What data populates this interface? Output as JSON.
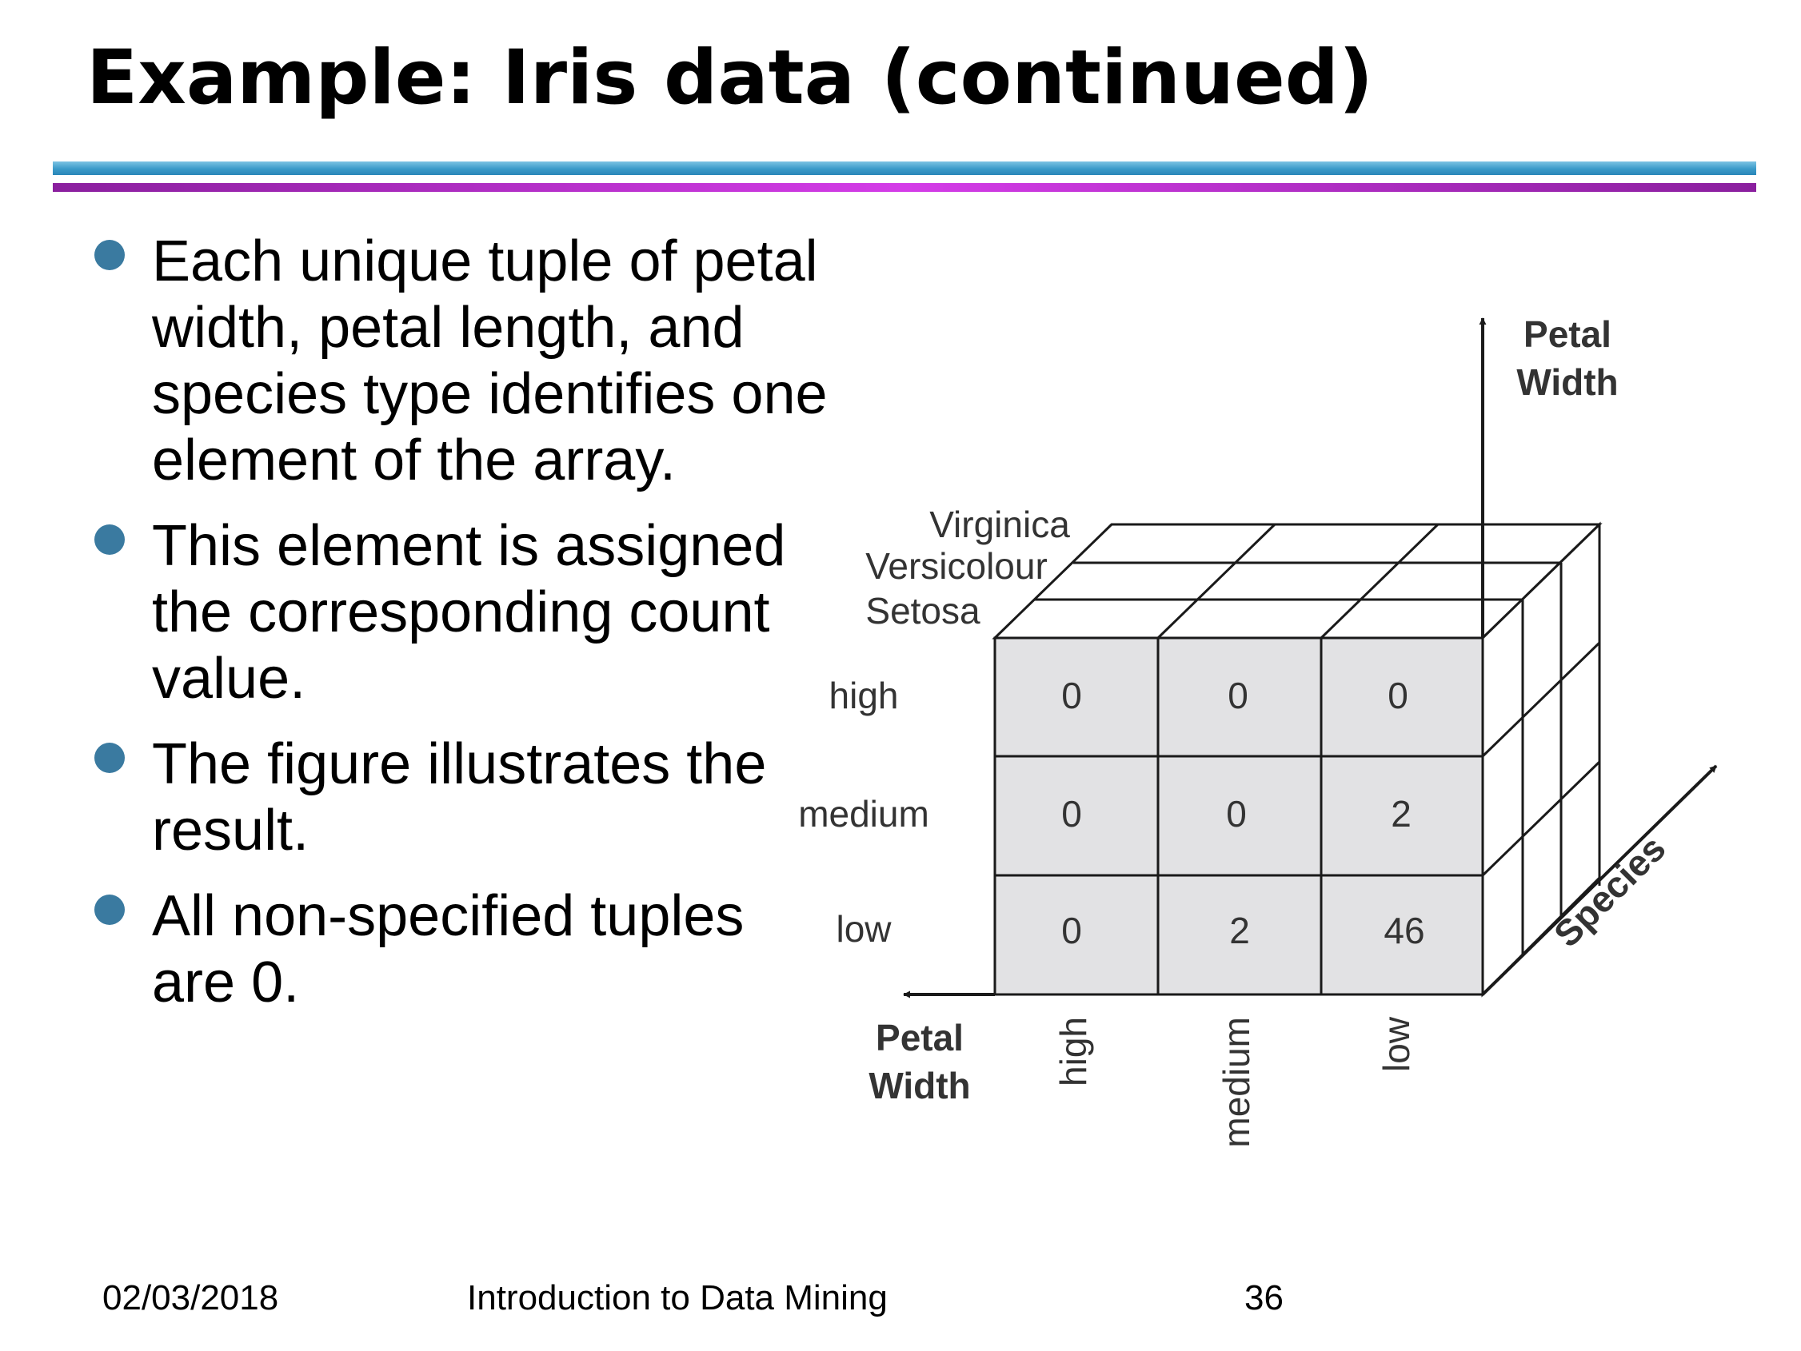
{
  "slide": {
    "title": "Example: Iris data (continued)",
    "bullets": [
      "Each unique tuple of petal width, petal length, and species type identifies one element of the array.",
      "This element is assigned the corresponding count value.",
      "The figure illustrates the result.",
      "All non-specified tuples are 0."
    ]
  },
  "diagram": {
    "species_labels": [
      "Virginica",
      "Versicolour",
      "Setosa"
    ],
    "row_labels": [
      "high",
      "medium",
      "low"
    ],
    "column_labels": [
      "high",
      "medium",
      "low"
    ],
    "vertical_axis_label_line1": "Petal",
    "vertical_axis_label_line2": "Width",
    "horizontal_axis_label_line1": "Petal",
    "horizontal_axis_label_line2": "Width",
    "depth_axis_label": "Species",
    "cells": [
      [
        "0",
        "0",
        "0"
      ],
      [
        "0",
        "0",
        "2"
      ],
      [
        "0",
        "2",
        "46"
      ]
    ]
  },
  "footer": {
    "date": "02/03/2018",
    "course": "Introduction to Data Mining",
    "page": "36"
  }
}
